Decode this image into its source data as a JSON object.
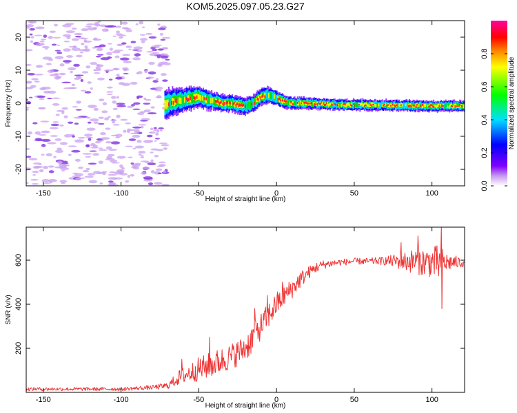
{
  "title": "KOM5.2025.097.05.23.G27",
  "chart_data": [
    {
      "type": "heatmap",
      "name": "spectrogram",
      "xlabel": "Height of straight line (km)",
      "ylabel": "Frequency (Hz)",
      "xlim": [
        -161,
        121
      ],
      "ylim": [
        -25,
        25
      ],
      "xticks": [
        -150,
        -100,
        -50,
        0,
        50,
        100
      ],
      "yticks": [
        -20,
        -10,
        0,
        10,
        20
      ],
      "colorbar": {
        "label": "Normalized spectral amplitude",
        "range": [
          0,
          1
        ],
        "ticks": [
          "0.0",
          "0.2",
          "0.4",
          "0.6",
          "0.8"
        ],
        "tick_values": [
          0,
          0.2,
          0.4,
          0.6,
          0.8
        ],
        "colors": [
          "#ffffff",
          "#c89af0",
          "#8000ff",
          "#0000ff",
          "#00e0ff",
          "#00ff00",
          "#ffff00",
          "#ff8000",
          "#ff0000",
          "#ff00a0"
        ]
      },
      "noise_region_x": [
        -161,
        -70
      ],
      "noise_color": "#c9a0f0",
      "noise_dark_color": "#8a3ee0",
      "signal_ridge": {
        "x": [
          -72,
          -66,
          -60,
          -55,
          -50,
          -45,
          -40,
          -35,
          -30,
          -25,
          -20,
          -15,
          -10,
          -5,
          0,
          5,
          10,
          20,
          40,
          60,
          80,
          100,
          121
        ],
        "freq": [
          -0.5,
          0.5,
          1.0,
          1.5,
          2.0,
          1.0,
          0.5,
          0.0,
          0.0,
          -0.5,
          -1.0,
          0.0,
          2.0,
          2.5,
          1.5,
          0.5,
          0.0,
          0.0,
          -0.5,
          -0.5,
          -0.7,
          -0.8,
          -0.8
        ],
        "width": [
          4.5,
          4,
          3.5,
          3.5,
          3,
          3,
          2.5,
          2.5,
          2.5,
          2.5,
          2.5,
          2.5,
          2.5,
          2.5,
          2.2,
          2,
          1.8,
          1.7,
          1.6,
          1.6,
          1.6,
          1.6,
          1.6
        ]
      }
    },
    {
      "type": "line",
      "name": "snr",
      "xlabel": "Height of straight line (km)",
      "ylabel": "SNR (v/v)",
      "xlim": [
        -161,
        121
      ],
      "ylim": [
        0,
        750
      ],
      "xticks": [
        -150,
        -100,
        -50,
        0,
        50,
        100
      ],
      "yticks": [
        200,
        400,
        600
      ],
      "color": "#ee3333",
      "envelope": {
        "x": [
          -161,
          -100,
          -80,
          -70,
          -62,
          -55,
          -50,
          -40,
          -30,
          -20,
          -15,
          -10,
          -5,
          0,
          5,
          10,
          15,
          20,
          25,
          30,
          40,
          50,
          60,
          70,
          80,
          90,
          100,
          105,
          110,
          121
        ],
        "snr": [
          15,
          15,
          22,
          30,
          70,
          90,
          105,
          130,
          160,
          200,
          250,
          300,
          350,
          400,
          440,
          470,
          510,
          540,
          565,
          580,
          590,
          595,
          595,
          597,
          595,
          595,
          590,
          585,
          590,
          590
        ],
        "noise": [
          8,
          8,
          10,
          15,
          35,
          45,
          55,
          60,
          60,
          60,
          70,
          60,
          60,
          55,
          50,
          45,
          40,
          30,
          25,
          20,
          15,
          15,
          15,
          20,
          40,
          60,
          70,
          90,
          40,
          20
        ]
      },
      "spikes": [
        {
          "x": -61,
          "snr": 150
        },
        {
          "x": -43,
          "snr": 250
        },
        {
          "x": -30,
          "snr": 190
        },
        {
          "x": -14,
          "snr": 380
        },
        {
          "x": -6,
          "snr": 440
        },
        {
          "x": 4,
          "snr": 500
        },
        {
          "x": 80,
          "snr": 680
        },
        {
          "x": 91,
          "snr": 710
        },
        {
          "x": 106,
          "snr": 755
        },
        {
          "x": 106.5,
          "snr": 380
        }
      ]
    }
  ]
}
